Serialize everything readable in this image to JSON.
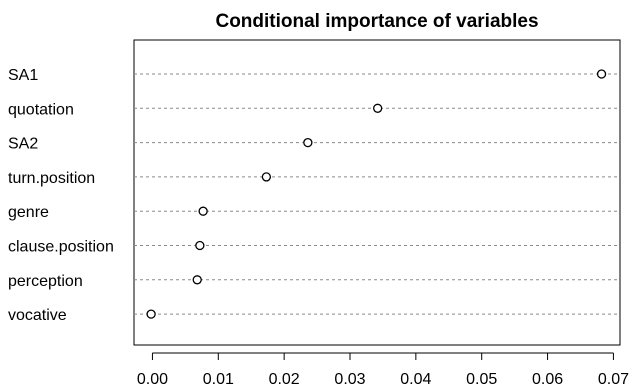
{
  "chart_data": {
    "type": "scatter",
    "title": "Conditional importance of variables",
    "xlabel": "",
    "ylabel": "",
    "categories": [
      "SA1",
      "quotation",
      "SA2",
      "turn.position",
      "genre",
      "clause.position",
      "perception",
      "vocative"
    ],
    "values": [
      0.0682,
      0.0342,
      0.0236,
      0.0173,
      0.0077,
      0.0072,
      0.0068,
      -0.0002
    ],
    "xlim": [
      -0.0028,
      0.071
    ],
    "xticks": [
      0.0,
      0.01,
      0.02,
      0.03,
      0.04,
      0.05,
      0.06,
      0.07
    ],
    "xtick_labels": [
      "0.00",
      "0.01",
      "0.02",
      "0.03",
      "0.04",
      "0.05",
      "0.06",
      "0.07"
    ],
    "grid": "dotted horizontal guide lines per category",
    "legend": "none"
  }
}
